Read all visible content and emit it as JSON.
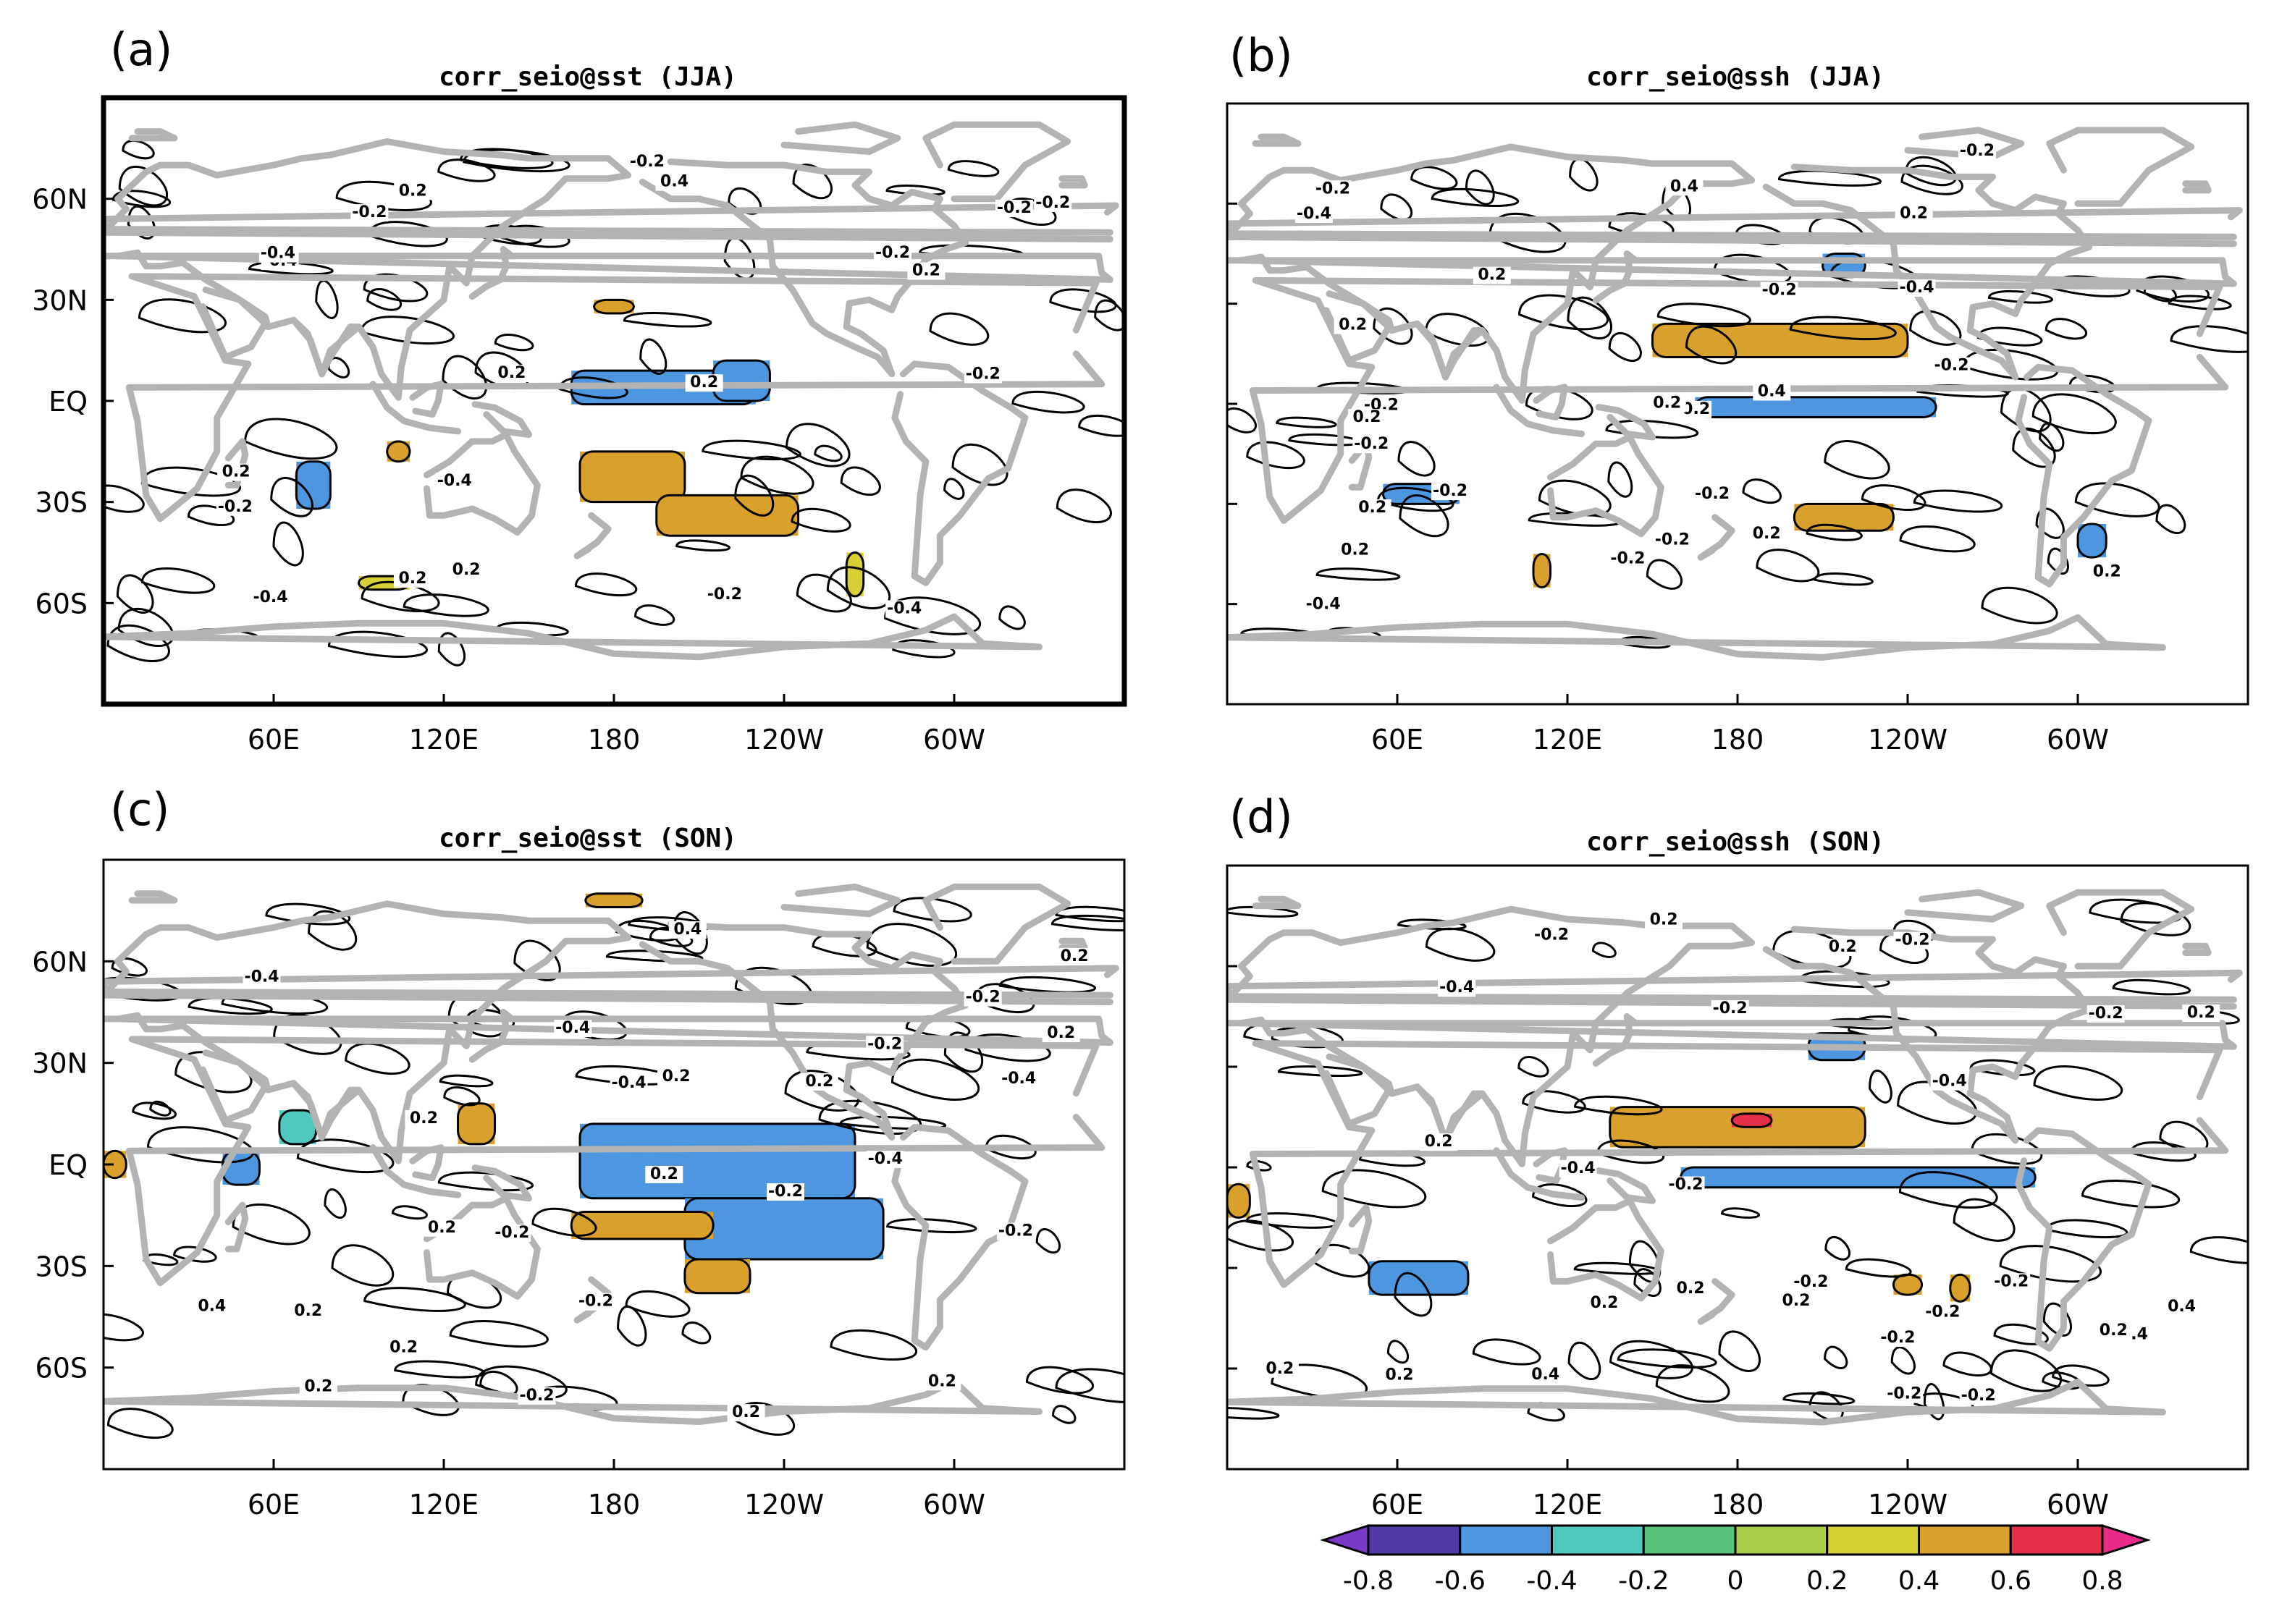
{
  "panels": [
    {
      "label": "(a)",
      "title": "corr_seio@sst (JJA)",
      "contour_labels": [
        "-0.2",
        "-0.2",
        "0.2",
        "-0.4",
        "-0.2",
        "-0.4",
        "0.2",
        "0.2",
        "-0.4",
        "-0.2",
        "-0.2",
        "0.2",
        "-0.4",
        "-0.2",
        "0.2",
        "0.4",
        "-0.4",
        "0.2",
        "-0.2",
        "-0.2",
        "0.2"
      ],
      "shaded": [
        {
          "lon": [
            165,
            230
          ],
          "lat": [
            -1,
            9
          ],
          "level": -0.6
        },
        {
          "lon": [
            215,
            235
          ],
          "lat": [
            0,
            12
          ],
          "level": -0.5
        },
        {
          "lon": [
            168,
            205
          ],
          "lat": [
            -30,
            -15
          ],
          "level": 0.5
        },
        {
          "lon": [
            195,
            245
          ],
          "lat": [
            -40,
            -28
          ],
          "level": 0.5
        },
        {
          "lon": [
            68,
            80
          ],
          "lat": [
            -32,
            -18
          ],
          "level": -0.6
        },
        {
          "lon": [
            173,
            187
          ],
          "lat": [
            26,
            30
          ],
          "level": 0.5
        },
        {
          "lon": [
            100,
            108
          ],
          "lat": [
            -18,
            -12
          ],
          "level": 0.5
        },
        {
          "lon": [
            90,
            108
          ],
          "lat": [
            -56,
            -52
          ],
          "level": 0.3
        },
        {
          "lon": [
            262,
            268
          ],
          "lat": [
            -58,
            -45
          ],
          "level": 0.3
        }
      ]
    },
    {
      "label": "(b)",
      "title": "corr_seio@ssh (JJA)",
      "contour_labels": [
        "-0.2",
        "0.2",
        "-0.4",
        "0.2",
        "0.4",
        "-0.2",
        "-0.4",
        "-0.2",
        "0.2",
        "-0.2",
        "-0.2",
        "0.2",
        "-0.2",
        "-0.4",
        "-0.2",
        "0.2",
        "0.2",
        "-0.2",
        "-0.2",
        "0.2",
        "0.4",
        "0.2",
        "-0.2",
        "0.2",
        "-0.2"
      ],
      "shaded": [
        {
          "lon": [
            150,
            240
          ],
          "lat": [
            14,
            24
          ],
          "level": 0.5
        },
        {
          "lon": [
            165,
            250
          ],
          "lat": [
            -4,
            2
          ],
          "level": -0.6
        },
        {
          "lon": [
            210,
            225
          ],
          "lat": [
            38,
            45
          ],
          "level": -0.6
        },
        {
          "lon": [
            55,
            82
          ],
          "lat": [
            -30,
            -24
          ],
          "level": -0.6
        },
        {
          "lon": [
            200,
            235
          ],
          "lat": [
            -38,
            -30
          ],
          "level": 0.5
        },
        {
          "lon": [
            108,
            114
          ],
          "lat": [
            -55,
            -45
          ],
          "level": 0.4
        },
        {
          "lon": [
            300,
            310
          ],
          "lat": [
            -46,
            -36
          ],
          "level": -0.6
        }
      ]
    },
    {
      "label": "(c)",
      "title": "corr_seio@sst (SON)",
      "contour_labels": [
        "0.2",
        "0.4",
        "0.2",
        "0.2",
        "0.2",
        "0.2",
        "-0.4",
        "-0.2",
        "0.2",
        "-0.4",
        "-0.2",
        "-0.4",
        "0.2",
        "-0.4",
        "-0.2",
        "0.2",
        "-0.2",
        "0.4",
        "0.2",
        "0.2",
        "-0.4",
        "-0.2",
        "0.2",
        "-0.2",
        "-0.2",
        "0.2"
      ],
      "shaded": [
        {
          "lon": [
            168,
            265
          ],
          "lat": [
            -10,
            12
          ],
          "level": -0.6
        },
        {
          "lon": [
            205,
            275
          ],
          "lat": [
            -28,
            -10
          ],
          "level": -0.6
        },
        {
          "lon": [
            165,
            215
          ],
          "lat": [
            -22,
            -14
          ],
          "level": 0.5
        },
        {
          "lon": [
            205,
            228
          ],
          "lat": [
            -38,
            -28
          ],
          "level": 0.5
        },
        {
          "lon": [
            125,
            138
          ],
          "lat": [
            6,
            18
          ],
          "level": 0.5
        },
        {
          "lon": [
            170,
            190
          ],
          "lat": [
            76,
            80
          ],
          "level": 0.5
        },
        {
          "lon": [
            62,
            75
          ],
          "lat": [
            6,
            16
          ],
          "level": -0.4
        },
        {
          "lon": [
            42,
            55
          ],
          "lat": [
            -6,
            4
          ],
          "level": -0.6
        },
        {
          "lon": [
            0,
            8
          ],
          "lat": [
            -4,
            4
          ],
          "level": 0.5
        }
      ]
    },
    {
      "label": "(d)",
      "title": "corr_seio@ssh (SON)",
      "contour_labels": [
        "-0.2",
        "-0.4",
        "0.4",
        "-0.2",
        "0.2",
        "0.2",
        "0.4",
        "-0.2",
        "0.2",
        "-0.2",
        "-0.4",
        "-0.2",
        "0.2",
        "-0.4",
        "-0.2",
        "0.2",
        "-0.4",
        "-0.2",
        "0.2",
        "0.2",
        "0.2",
        "-0.2",
        "-0.2",
        "0.2",
        "-0.2",
        "0.2",
        "-0.2"
      ],
      "shaded": [
        {
          "lon": [
            135,
            225
          ],
          "lat": [
            6,
            18
          ],
          "level": 0.5
        },
        {
          "lon": [
            178,
            192
          ],
          "lat": [
            12,
            16
          ],
          "level": 0.7
        },
        {
          "lon": [
            160,
            285
          ],
          "lat": [
            -6,
            0
          ],
          "level": -0.6
        },
        {
          "lon": [
            205,
            225
          ],
          "lat": [
            32,
            40
          ],
          "level": -0.6
        },
        {
          "lon": [
            50,
            85
          ],
          "lat": [
            -38,
            -28
          ],
          "level": -0.6
        },
        {
          "lon": [
            0,
            8
          ],
          "lat": [
            -15,
            -5
          ],
          "level": 0.5
        },
        {
          "lon": [
            255,
            262
          ],
          "lat": [
            -40,
            -32
          ],
          "level": 0.5
        },
        {
          "lon": [
            235,
            245
          ],
          "lat": [
            -38,
            -32
          ],
          "level": 0.5
        }
      ]
    }
  ],
  "lon_ticks": [
    "60E",
    "120E",
    "180",
    "120W",
    "60W"
  ],
  "lat_ticks": [
    "60N",
    "30N",
    "EQ",
    "30S",
    "60S"
  ],
  "colorbar": {
    "levels": [
      -0.8,
      -0.6,
      -0.4,
      -0.2,
      0,
      0.2,
      0.4,
      0.6,
      0.8
    ],
    "tick_labels": [
      "-0.8",
      "-0.6",
      "-0.4",
      "-0.2",
      "0",
      "0.2",
      "0.4",
      "0.6",
      "0.8"
    ],
    "colors": [
      "#7a3ac8",
      "#4f3aa8",
      "#4d96e0",
      "#4fc8c0",
      "#58c47a",
      "#a8d048",
      "#d8cf36",
      "#d9a02c",
      "#e5304a",
      "#e82a8c"
    ]
  },
  "colors": {
    "coast": "#b3b3b3",
    "contour": "#000000"
  }
}
